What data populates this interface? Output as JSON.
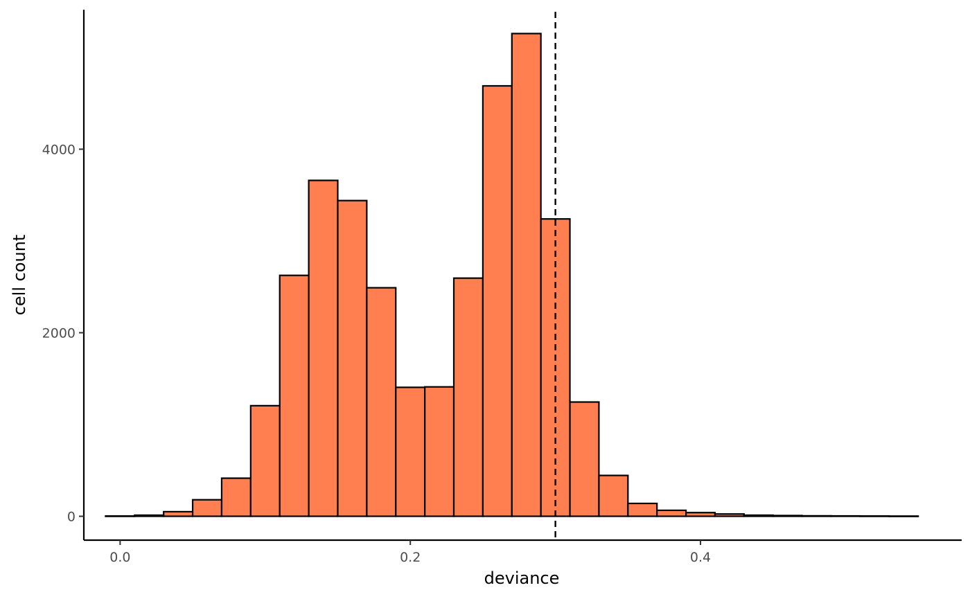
{
  "chart_data": {
    "type": "bar",
    "title": "",
    "xlabel": "deviance",
    "ylabel": "cell count",
    "xlim": [
      -0.025,
      0.58
    ],
    "ylim": [
      -260,
      5520
    ],
    "x_ticks": [
      0.0,
      0.2,
      0.4
    ],
    "x_tick_labels": [
      "0.0",
      "0.2",
      "0.4"
    ],
    "y_ticks": [
      0,
      2000,
      4000
    ],
    "y_tick_labels": [
      "0",
      "2000",
      "4000"
    ],
    "bin_width": 0.02,
    "bin_starts": [
      -0.01,
      0.01,
      0.03,
      0.05,
      0.07,
      0.09,
      0.11,
      0.13,
      0.15,
      0.17,
      0.19,
      0.21,
      0.23,
      0.25,
      0.27,
      0.29,
      0.31,
      0.33,
      0.35,
      0.37,
      0.39,
      0.41,
      0.43,
      0.45,
      0.47,
      0.49,
      0.51,
      0.53
    ],
    "values": [
      3,
      12,
      50,
      180,
      415,
      1205,
      2625,
      3660,
      3440,
      2490,
      1405,
      1410,
      2595,
      4690,
      5260,
      3240,
      1245,
      445,
      140,
      65,
      40,
      25,
      12,
      8,
      5,
      4,
      3,
      2
    ],
    "reference_line_x": 0.3,
    "grid": false,
    "legend": "none",
    "colors": {
      "bar_fill": "#FF7F50",
      "bar_outline": "#000000",
      "reference_line": "#000000"
    }
  }
}
